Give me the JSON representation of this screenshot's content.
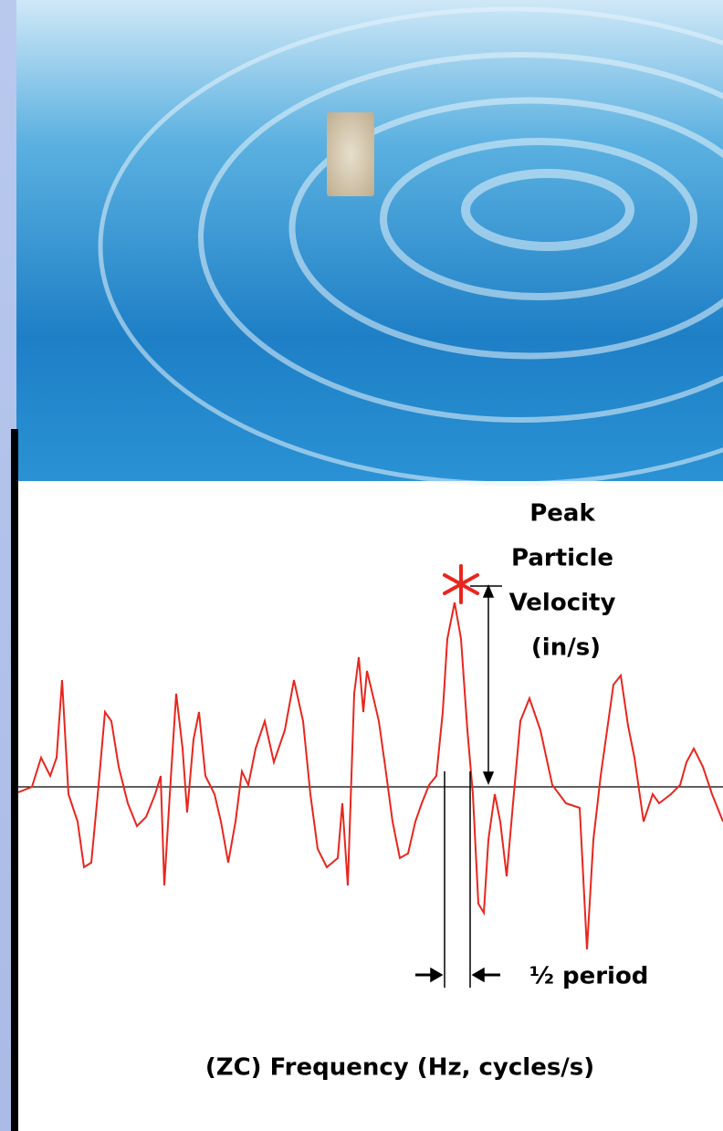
{
  "annotations": {
    "peak_velocity": [
      "Peak",
      "Particle",
      "Velocity",
      "(in/s)"
    ],
    "half_period": "½ period",
    "frequency": "(ZC) Frequency (Hz, cycles/s)"
  }
}
